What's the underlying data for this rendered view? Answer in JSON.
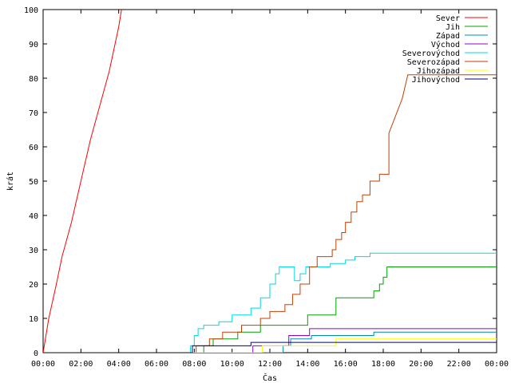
{
  "chart_data": {
    "type": "line",
    "xlabel": "Čas",
    "ylabel": "krát",
    "xlim": [
      0,
      24
    ],
    "ylim": [
      0,
      100
    ],
    "grid": false,
    "legend_position": "top-right",
    "x_ticks": [
      {
        "value": 0,
        "label": "00:00"
      },
      {
        "value": 2,
        "label": "02:00"
      },
      {
        "value": 4,
        "label": "04:00"
      },
      {
        "value": 6,
        "label": "06:00"
      },
      {
        "value": 8,
        "label": "08:00"
      },
      {
        "value": 10,
        "label": "10:00"
      },
      {
        "value": 12,
        "label": "12:00"
      },
      {
        "value": 14,
        "label": "14:00"
      },
      {
        "value": 16,
        "label": "16:00"
      },
      {
        "value": 18,
        "label": "18:00"
      },
      {
        "value": 20,
        "label": "20:00"
      },
      {
        "value": 22,
        "label": "22:00"
      },
      {
        "value": 24,
        "label": "00:00"
      }
    ],
    "y_ticks": [
      0,
      10,
      20,
      30,
      40,
      50,
      60,
      70,
      80,
      90,
      100
    ],
    "series": [
      {
        "name": "Sever",
        "color": "#ff0000",
        "x": [
          0,
          0.3,
          0.7,
          1.0,
          1.5,
          2.0,
          2.5,
          3.0,
          3.5,
          4.0,
          4.15
        ],
        "y": [
          0,
          10,
          20,
          28,
          38,
          50,
          62,
          72,
          82,
          95,
          100
        ]
      },
      {
        "name": "Jih",
        "color": "#00a000",
        "x": [
          0,
          8.5,
          8.5,
          9.0,
          9.0,
          10.3,
          10.3,
          11.5,
          11.5,
          14.0,
          14.0,
          15.5,
          15.5,
          17.5,
          17.5,
          17.8,
          17.8,
          18.0,
          18.0,
          18.2,
          18.2,
          24
        ],
        "y": [
          0,
          0,
          2,
          2,
          4,
          4,
          6,
          6,
          8,
          8,
          11,
          11,
          16,
          16,
          18,
          18,
          20,
          20,
          22,
          22,
          25,
          25
        ]
      },
      {
        "name": "Západ",
        "color": "#008ca8",
        "x": [
          0,
          12.7,
          12.7,
          13.1,
          13.1,
          14.2,
          14.2,
          17.5,
          17.5,
          24
        ],
        "y": [
          0,
          0,
          2,
          2,
          4,
          4,
          5,
          5,
          6,
          6
        ]
      },
      {
        "name": "Východ",
        "color": "#9400d3",
        "x": [
          0,
          11.1,
          11.1,
          13.0,
          13.0,
          14.1,
          14.1,
          24
        ],
        "y": [
          0,
          0,
          2,
          2,
          5,
          5,
          7,
          7
        ]
      },
      {
        "name": "Severovýchod",
        "color": "#00d8e0",
        "x": [
          0,
          7.8,
          7.8,
          8.0,
          8.0,
          8.2,
          8.2,
          8.5,
          8.5,
          9.3,
          9.3,
          10.0,
          10.0,
          11.0,
          11.0,
          11.5,
          11.5,
          12.0,
          12.0,
          12.3,
          12.3,
          12.5,
          12.5,
          13.3,
          13.3,
          13.6,
          13.6,
          13.9,
          13.9,
          15.2,
          15.2,
          16.0,
          16.0,
          16.5,
          16.5,
          17.3,
          17.3,
          24
        ],
        "y": [
          0,
          0,
          2,
          2,
          5,
          5,
          7,
          7,
          8,
          8,
          9,
          9,
          11,
          11,
          13,
          13,
          16,
          16,
          20,
          20,
          23,
          23,
          25,
          25,
          21,
          21,
          23,
          23,
          25,
          25,
          26,
          26,
          27,
          27,
          28,
          28,
          29,
          29
        ]
      },
      {
        "name": "Severozápad",
        "color": "#c04000",
        "x": [
          0,
          8.1,
          8.1,
          8.8,
          8.8,
          9.5,
          9.5,
          10.5,
          10.5,
          11.5,
          11.5,
          12.0,
          12.0,
          12.8,
          12.8,
          13.2,
          13.2,
          13.6,
          13.6,
          14.1,
          14.1,
          14.5,
          14.5,
          15.3,
          15.3,
          15.5,
          15.5,
          15.8,
          15.8,
          16.0,
          16.0,
          16.3,
          16.3,
          16.6,
          16.6,
          16.9,
          16.9,
          17.3,
          17.3,
          17.8,
          17.8,
          18.3,
          18.3,
          19.0,
          19.3,
          24
        ],
        "y": [
          0,
          0,
          2,
          2,
          4,
          4,
          6,
          6,
          8,
          8,
          10,
          10,
          12,
          12,
          14,
          14,
          17,
          17,
          20,
          20,
          25,
          25,
          28,
          28,
          30,
          30,
          33,
          33,
          35,
          35,
          38,
          38,
          41,
          41,
          44,
          44,
          46,
          46,
          50,
          50,
          52,
          52,
          64,
          74,
          81,
          81
        ]
      },
      {
        "name": "Jihozápad",
        "color": "#ffff00",
        "x": [
          0,
          11.6,
          11.6,
          15.5,
          15.5,
          24
        ],
        "y": [
          0,
          0,
          2,
          2,
          4,
          4
        ]
      },
      {
        "name": "Jihovýchod",
        "color": "#000080",
        "x": [
          0,
          7.9,
          7.9,
          11.0,
          11.0,
          24
        ],
        "y": [
          0,
          0,
          2,
          2,
          3,
          3
        ]
      }
    ]
  }
}
